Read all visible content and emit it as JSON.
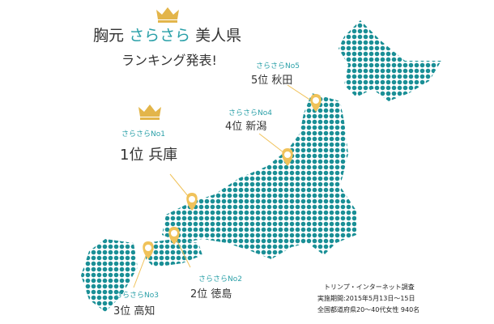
{
  "header": {
    "title": [
      "胸元",
      "さらさら",
      "美人県"
    ],
    "subtitle": "ランキング発表!"
  },
  "rankings": [
    {
      "label": "さらさらNo1",
      "rank": "1位",
      "prefecture": "兵庫"
    },
    {
      "label": "さらさらNo2",
      "rank": "2位",
      "prefecture": "徳島"
    },
    {
      "label": "さらさらNo3",
      "rank": "3位",
      "prefecture": "高知"
    },
    {
      "label": "さらさらNo4",
      "rank": "4位",
      "prefecture": "新潟"
    },
    {
      "label": "さらさらNo5",
      "rank": "5位",
      "prefecture": "秋田"
    }
  ],
  "note": [
    "トリンプ・インターネット調査",
    "実施期間:2015年5月13日〜15日",
    "全国都道府県20〜40代女性 940名"
  ]
}
